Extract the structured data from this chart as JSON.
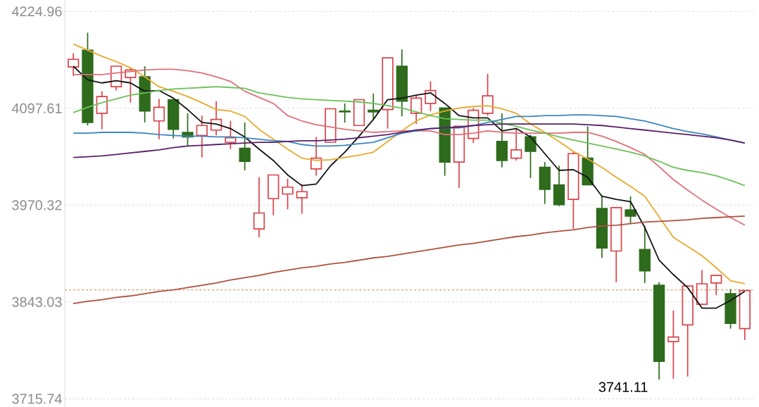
{
  "chart_data": {
    "type": "candlestick",
    "categories": [
      null,
      null,
      null,
      null,
      null,
      null,
      null,
      null,
      null,
      null,
      null,
      null,
      null,
      null,
      null,
      null,
      null,
      null,
      null,
      null,
      null,
      null,
      null,
      null,
      null,
      null,
      null,
      null,
      null,
      null,
      null,
      null,
      null,
      null,
      null,
      null,
      null,
      null,
      null,
      null,
      null,
      null,
      null,
      null,
      null,
      null,
      null,
      null
    ],
    "ohlc": [
      [
        4152,
        4170,
        4140,
        4162
      ],
      [
        4174,
        4197,
        4075,
        4079
      ],
      [
        4091,
        4120,
        4070,
        4113
      ],
      [
        4126,
        4153,
        4121,
        4153
      ],
      [
        4138,
        4151,
        4105,
        4148
      ],
      [
        4139,
        4153,
        4079,
        4094
      ],
      [
        4081,
        4110,
        4057,
        4099
      ],
      [
        4109,
        4109,
        4058,
        4070
      ],
      [
        4066,
        4091,
        4048,
        4060
      ],
      [
        4062,
        4088,
        4033,
        4075
      ],
      [
        4069,
        4107,
        4062,
        4083
      ],
      [
        4053,
        4081,
        4044,
        4059
      ],
      [
        4045,
        4079,
        4016,
        4028
      ],
      [
        3939,
        4007,
        3928,
        3960
      ],
      [
        3979,
        4010,
        3957,
        4010
      ],
      [
        3985,
        4005,
        3965,
        3994
      ],
      [
        3980,
        3998,
        3959,
        3988
      ],
      [
        4018,
        4060,
        4009,
        4032
      ],
      [
        4053,
        4097,
        4053,
        4097
      ],
      [
        4094,
        4104,
        4079,
        4093
      ],
      [
        4075,
        4109,
        4075,
        4109
      ],
      [
        4095,
        4117,
        4083,
        4093
      ],
      [
        4096,
        4164,
        4071,
        4164
      ],
      [
        4153,
        4175,
        4087,
        4107
      ],
      [
        4091,
        4115,
        4077,
        4111
      ],
      [
        4104,
        4133,
        4094,
        4121
      ],
      [
        4098,
        4098,
        4009,
        4027
      ],
      [
        4027,
        4074,
        3993,
        4074
      ],
      [
        4058,
        4098,
        4052,
        4095
      ],
      [
        4091,
        4143,
        4088,
        4114
      ],
      [
        4054,
        4091,
        4020,
        4029
      ],
      [
        4032,
        4072,
        4029,
        4043
      ],
      [
        4060,
        4063,
        4006,
        4041
      ],
      [
        4020,
        4027,
        3972,
        3991
      ],
      [
        3997,
        4022,
        3969,
        3971
      ],
      [
        3978,
        4040,
        3939,
        4038
      ],
      [
        4032,
        4074,
        3997,
        3997
      ],
      [
        3966,
        3982,
        3901,
        3914
      ],
      [
        3910,
        3968,
        3869,
        3967
      ],
      [
        3964,
        3982,
        3946,
        3956
      ],
      [
        3912,
        3943,
        3868,
        3884
      ],
      [
        3865,
        3869,
        3741.11,
        3765
      ],
      [
        3791,
        3832,
        3742,
        3797
      ],
      [
        3813,
        3864,
        3745,
        3864
      ],
      [
        3840,
        3885,
        3840,
        3867
      ],
      [
        3868,
        3878,
        3852,
        3878
      ],
      [
        3854,
        3860,
        3808,
        3815
      ],
      [
        3808,
        3858,
        3793,
        3858
      ]
    ],
    "colors": [
      "#d9434a",
      "#2e6b1c",
      "#d9434a",
      "#d9434a",
      "#d9434a",
      "#2e6b1c",
      "#d9434a",
      "#2e6b1c",
      "#2e6b1c",
      "#d9434a",
      "#d9434a",
      "#d9434a",
      "#2e6b1c",
      "#d9434a",
      "#d9434a",
      "#d9434a",
      "#d9434a",
      "#d9434a",
      "#d9434a",
      "#2e6b1c",
      "#d9434a",
      "#2e6b1c",
      "#d9434a",
      "#2e6b1c",
      "#d9434a",
      "#d9434a",
      "#2e6b1c",
      "#d9434a",
      "#d9434a",
      "#d9434a",
      "#2e6b1c",
      "#d9434a",
      "#2e6b1c",
      "#2e6b1c",
      "#2e6b1c",
      "#d9434a",
      "#2e6b1c",
      "#2e6b1c",
      "#d9434a",
      "#2e6b1c",
      "#2e6b1c",
      "#2e6b1c",
      "#d9434a",
      "#d9434a",
      "#d9434a",
      "#d9434a",
      "#2e6b1c",
      "#d9434a"
    ],
    "series": [
      {
        "type": "line",
        "color": "#111111",
        "values": [
          4153,
          4135,
          4131,
          4134,
          4131,
          4120,
          4121,
          4111,
          4096,
          4079,
          4077,
          4071,
          4060,
          4044,
          4029,
          4010,
          3996,
          3998,
          4022,
          4040,
          4061,
          4083,
          4109,
          4111,
          4115,
          4118,
          4104,
          4088,
          4085,
          4085,
          4068,
          4071,
          4060,
          4038,
          4016,
          4017,
          4007,
          3982,
          3978,
          3975,
          3941,
          3898,
          3879,
          3862,
          3835,
          3835,
          3845,
          3857
        ]
      },
      {
        "type": "line",
        "color": "#e8a92c",
        "values": [
          4182,
          4174,
          4166,
          4159,
          4151,
          4139,
          4126,
          4120,
          4113,
          4105,
          4096,
          4094,
          4087,
          4070,
          4057,
          4044,
          4032,
          4029,
          4030,
          4033,
          4036,
          4040,
          4054,
          4068,
          4081,
          4089,
          4094,
          4098,
          4100,
          4101,
          4097,
          4091,
          4077,
          4066,
          4054,
          4041,
          4031,
          4020,
          4007,
          3995,
          3982,
          3955,
          3928,
          3916,
          3904,
          3888,
          3871,
          3867
        ]
      },
      {
        "type": "line",
        "color": "#e0707a",
        "values": [
          4142,
          4142,
          4142,
          4144,
          4146,
          4148,
          4149,
          4149,
          4147,
          4144,
          4139,
          4133,
          4120,
          4112,
          4104,
          4088,
          4081,
          4076,
          4073,
          4070,
          4068,
          4066,
          4067,
          4068,
          4068,
          4068,
          4063,
          4063,
          4065,
          4068,
          4066,
          4065,
          4065,
          4065,
          4065,
          4066,
          4066,
          4061,
          4054,
          4046,
          4037,
          4021,
          4004,
          3990,
          3977,
          3965,
          3954,
          3944
        ]
      },
      {
        "type": "line",
        "color": "#6cc15a",
        "values": [
          4092,
          4099,
          4105,
          4110,
          4115,
          4118,
          4121,
          4123,
          4124,
          4125,
          4126,
          4125,
          4124,
          4118,
          4115,
          4112,
          4110,
          4109,
          4108,
          4107,
          4106,
          4104,
          4101,
          4098,
          4093,
          4088,
          4084,
          4083,
          4082,
          4082,
          4078,
          4074,
          4069,
          4065,
          4060,
          4056,
          4052,
          4048,
          4044,
          4040,
          4035,
          4028,
          4020,
          4016,
          4013,
          4009,
          4003,
          3996
        ]
      },
      {
        "type": "line",
        "color": "#3b86c0",
        "values": [
          4065,
          4065,
          4066,
          4066,
          4066,
          4065,
          4063,
          4062,
          4061,
          4061,
          4060,
          4060,
          4059,
          4057,
          4055,
          4054,
          4050,
          4048,
          4048,
          4049,
          4051,
          4053,
          4059,
          4065,
          4068,
          4071,
          4072,
          4072,
          4075,
          4079,
          4083,
          4087,
          4087,
          4088,
          4088,
          4089,
          4089,
          4088,
          4087,
          4084,
          4081,
          4076,
          4071,
          4067,
          4064,
          4060,
          4056,
          4052
        ]
      },
      {
        "type": "line",
        "color": "#5a1f6a",
        "values": [
          4033,
          4034,
          4035,
          4037,
          4039,
          4041,
          4043,
          4046,
          4048,
          4049,
          4050,
          4051,
          4052,
          4053,
          4053,
          4054,
          4055,
          4055,
          4056,
          4057,
          4059,
          4061,
          4063,
          4066,
          4069,
          4071,
          4072,
          4073,
          4075,
          4076,
          4077,
          4077,
          4077,
          4077,
          4077,
          4077,
          4076,
          4075,
          4073,
          4071,
          4069,
          4067,
          4065,
          4063,
          4061,
          4059,
          4056,
          4052
        ]
      },
      {
        "type": "line",
        "color": "#b05040",
        "values": [
          3841,
          3844,
          3846,
          3849,
          3851,
          3854,
          3857,
          3859,
          3862,
          3865,
          3868,
          3872,
          3875,
          3878,
          3882,
          3885,
          3888,
          3890,
          3893,
          3895,
          3898,
          3901,
          3903,
          3906,
          3909,
          3912,
          3915,
          3918,
          3920,
          3923,
          3926,
          3929,
          3931,
          3934,
          3936,
          3938,
          3941,
          3943,
          3944,
          3946,
          3948,
          3949,
          3950,
          3951,
          3953,
          3954,
          3955,
          3956
        ]
      }
    ],
    "ylim": [
      3705,
      4240
    ],
    "yticks": [
      4224.96,
      4097.61,
      3970.32,
      3843.03,
      3715.74
    ],
    "grid": "y",
    "ref_lines": [
      {
        "axis": "y",
        "value": 3859,
        "color": "#c9a06a",
        "line_style": "dashed"
      }
    ],
    "annotations": [
      "3741.11"
    ]
  }
}
